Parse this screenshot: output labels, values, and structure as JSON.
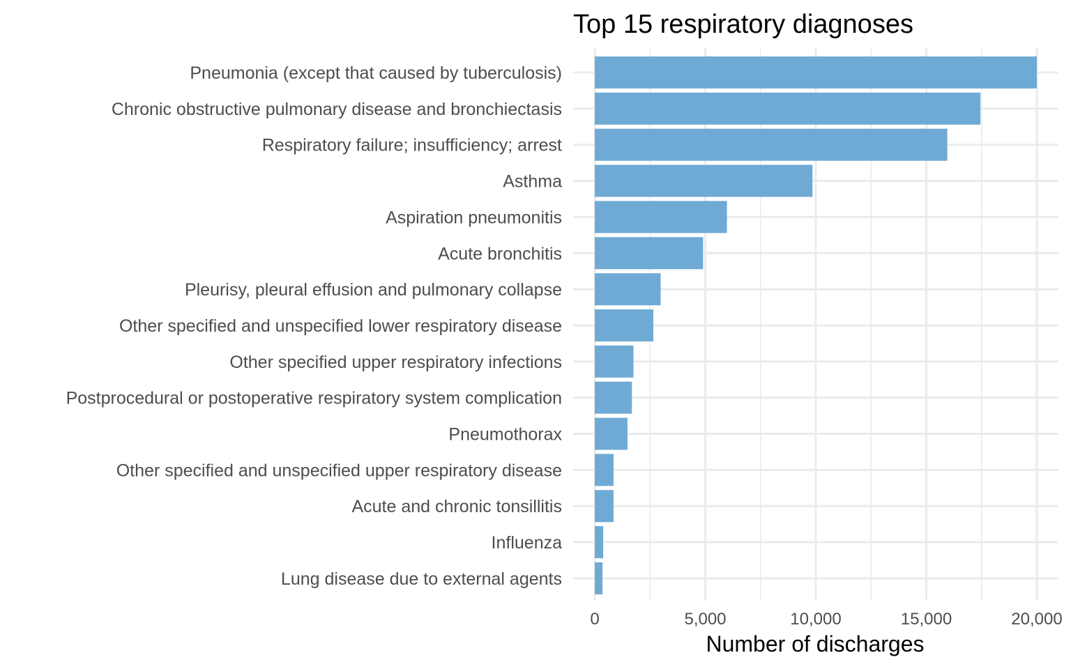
{
  "chart_data": {
    "type": "bar",
    "orientation": "horizontal",
    "title": "Top 15 respiratory diagnoses",
    "xlabel": "Number of discharges",
    "ylabel": "",
    "xlim": [
      0,
      20000
    ],
    "x_ticks": [
      0,
      5000,
      10000,
      15000,
      20000
    ],
    "x_tick_labels": [
      "0",
      "5,000",
      "10,000",
      "15,000",
      "20,000"
    ],
    "grid": true,
    "bar_color": "#6faad5",
    "grid_color": "#ebebeb",
    "categories": [
      "Pneumonia (except that caused by tuberculosis)",
      "Chronic obstructive pulmonary disease and bronchiectasis",
      "Respiratory failure; insufficiency; arrest",
      "Asthma",
      "Aspiration pneumonitis",
      "Acute bronchitis",
      "Pleurisy, pleural effusion and pulmonary collapse",
      "Other specified and unspecified lower respiratory disease",
      "Other specified upper respiratory infections",
      "Postprocedural or postoperative respiratory system complication",
      "Pneumothorax",
      "Other specified and unspecified upper respiratory disease",
      "Acute and chronic tonsillitis",
      "Influenza",
      "Lung disease due to external agents"
    ],
    "values": [
      20000,
      17450,
      15950,
      9850,
      5980,
      4900,
      2980,
      2650,
      1750,
      1680,
      1480,
      850,
      850,
      380,
      350
    ]
  }
}
